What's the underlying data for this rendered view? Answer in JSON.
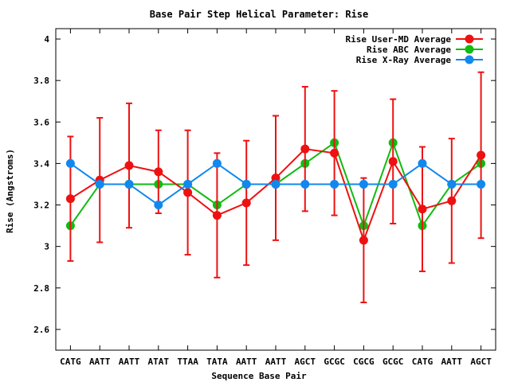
{
  "chart_data": {
    "type": "line",
    "title": "Base Pair Step Helical Parameter: Rise",
    "xlabel": "Sequence Base Pair",
    "ylabel": "Rise (Angstroms)",
    "categories": [
      "CATG",
      "AATT",
      "AATT",
      "ATAT",
      "TTAA",
      "TATA",
      "AATT",
      "AATT",
      "AGCT",
      "GCGC",
      "CGCG",
      "GCGC",
      "CATG",
      "AATT",
      "AGCT"
    ],
    "ylim": [
      2.5,
      4.05
    ],
    "yticks": [
      2.6,
      2.8,
      3.0,
      3.2,
      3.4,
      3.6,
      3.8,
      4.0
    ],
    "ytick_labels": [
      "2.6",
      "2.8",
      "3",
      "3.2",
      "3.4",
      "3.6",
      "3.8",
      "4"
    ],
    "legend_position": "top-right",
    "series": [
      {
        "name": "Rise User-MD Average",
        "color": "#ee1111",
        "values": [
          3.23,
          3.32,
          3.39,
          3.36,
          3.26,
          3.15,
          3.21,
          3.33,
          3.47,
          3.45,
          3.03,
          3.41,
          3.18,
          3.22,
          3.44
        ],
        "err_low": [
          2.93,
          3.02,
          3.09,
          3.16,
          2.96,
          2.85,
          2.91,
          3.03,
          3.17,
          3.15,
          2.73,
          3.11,
          2.88,
          2.92,
          3.04
        ],
        "err_high": [
          3.53,
          3.62,
          3.69,
          3.56,
          3.56,
          3.45,
          3.51,
          3.63,
          3.77,
          3.75,
          3.33,
          3.71,
          3.48,
          3.52,
          3.84
        ]
      },
      {
        "name": "Rise ABC Average",
        "color": "#11bb11",
        "values": [
          3.1,
          3.3,
          3.3,
          3.3,
          3.3,
          3.2,
          3.3,
          3.3,
          3.4,
          3.5,
          3.1,
          3.5,
          3.1,
          3.3,
          3.4
        ]
      },
      {
        "name": "Rise X-Ray Average",
        "color": "#1188ee",
        "values": [
          3.4,
          3.3,
          3.3,
          3.2,
          3.3,
          3.4,
          3.3,
          3.3,
          3.3,
          3.3,
          3.3,
          3.3,
          3.4,
          3.3,
          3.3
        ]
      }
    ]
  }
}
